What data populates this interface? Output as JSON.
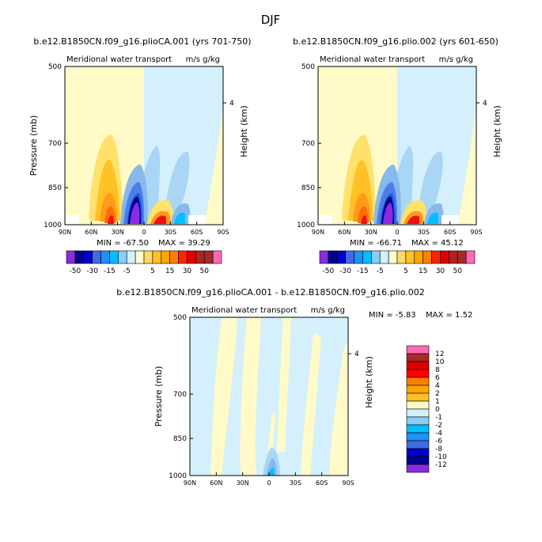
{
  "figure_title": "DJF",
  "chart_data": [
    {
      "type": "heatmap",
      "title": "b.e12.B1850CN.f09_g16.plioCA.001 (yrs 701-750)",
      "subtitle": "Meridional water transport",
      "units": "m/s g/kg",
      "ylabel": "Pressure (mb)",
      "right_label": "Height (km)",
      "xlabel": "",
      "x_ticks": [
        "90N",
        "60N",
        "30N",
        "0",
        "30S",
        "60S",
        "90S"
      ],
      "y_ticks": [
        "500",
        "700",
        "850",
        "1000"
      ],
      "right_ticks": [
        "4"
      ],
      "xlim": [
        90,
        -90
      ],
      "ylim": [
        1000,
        500
      ],
      "min_label": "MIN =  -67.50",
      "max_label": "MAX =  39.29",
      "min": -67.5,
      "max": 39.29,
      "features": [
        {
          "lat": 42,
          "p_top": 640,
          "level": 15
        },
        {
          "lat": 37,
          "p_top": 760,
          "level": 20
        },
        {
          "lat": 33,
          "p_top": 920,
          "level": 30
        },
        {
          "lat": 10,
          "p_top": 820,
          "level": -5
        },
        {
          "lat": 8,
          "p_top": 880,
          "level": -15
        },
        {
          "lat": 6,
          "p_top": 920,
          "level": -30
        },
        {
          "lat": 5,
          "p_top": 950,
          "level": -50
        },
        {
          "lat": -15,
          "p_top": 900,
          "level": 5
        },
        {
          "lat": -22,
          "p_top": 950,
          "level": 30
        },
        {
          "lat": -40,
          "p_top": 890,
          "level": -5
        },
        {
          "lat": -55,
          "p_top": 900,
          "level": -1
        }
      ]
    },
    {
      "type": "heatmap",
      "title": "b.e12.B1850CN.f09_g16.plio.002 (yrs 601-650)",
      "subtitle": "Meridional water transport",
      "units": "m/s g/kg",
      "ylabel": "",
      "right_label": "Height (km)",
      "xlabel": "",
      "x_ticks": [
        "90N",
        "60N",
        "30N",
        "0",
        "30S",
        "60S",
        "90S"
      ],
      "y_ticks": [
        "500",
        "700",
        "850",
        "1000"
      ],
      "right_ticks": [
        "4"
      ],
      "xlim": [
        90,
        -90
      ],
      "ylim": [
        1000,
        500
      ],
      "min_label": "MIN =  -66.71",
      "max_label": "MAX =  45.12",
      "min": -66.71,
      "max": 45.12,
      "features": [
        {
          "lat": 42,
          "p_top": 640,
          "level": 15
        },
        {
          "lat": 37,
          "p_top": 760,
          "level": 20
        },
        {
          "lat": 33,
          "p_top": 920,
          "level": 30
        },
        {
          "lat": 10,
          "p_top": 820,
          "level": -5
        },
        {
          "lat": 8,
          "p_top": 880,
          "level": -15
        },
        {
          "lat": 6,
          "p_top": 920,
          "level": -30
        },
        {
          "lat": 5,
          "p_top": 950,
          "level": -50
        },
        {
          "lat": -15,
          "p_top": 900,
          "level": 5
        },
        {
          "lat": -22,
          "p_top": 950,
          "level": 30
        },
        {
          "lat": -40,
          "p_top": 890,
          "level": -5
        },
        {
          "lat": -55,
          "p_top": 900,
          "level": -1
        }
      ]
    },
    {
      "type": "heatmap",
      "title": "b.e12.B1850CN.f09_g16.plioCA.001 - b.e12.B1850CN.f09_g16.plio.002",
      "subtitle": "Meridional water transport",
      "units": "m/s g/kg",
      "ylabel": "Pressure (mb)",
      "right_label": "Height (km)",
      "xlabel": "",
      "x_ticks": [
        "90N",
        "60N",
        "30N",
        "0",
        "30S",
        "60S",
        "90S"
      ],
      "y_ticks": [
        "500",
        "700",
        "850",
        "1000"
      ],
      "right_ticks": [
        "4"
      ],
      "xlim": [
        90,
        -90
      ],
      "ylim": [
        1000,
        500
      ],
      "min_label": "MIN =  -5.83",
      "max_label": "MAX =   1.52",
      "min": -5.83,
      "max": 1.52,
      "features": [
        {
          "lat": 5,
          "p_top": 920,
          "level": -2
        },
        {
          "lat": 0,
          "p_top": 970,
          "level": -4
        }
      ]
    }
  ],
  "colorbar_top": {
    "colors": [
      "#8a2be2",
      "#00008b",
      "#0000cd",
      "#4169e1",
      "#1e90ff",
      "#00bfff",
      "#87cefa",
      "#d4f0fc",
      "#fffacd",
      "#ffd966",
      "#ffc125",
      "#ffa500",
      "#ff7f00",
      "#ff2400",
      "#dd0000",
      "#b22222",
      "#a52a2a",
      "#ff69b4"
    ],
    "labels": [
      "-50",
      "-30",
      "-15",
      "-5",
      "5",
      "15",
      "30",
      "50"
    ]
  },
  "colorbar_side": {
    "colors": [
      "#ff69b4",
      "#a52a2a",
      "#dd0000",
      "#ff0000",
      "#ff7f00",
      "#ffa500",
      "#ffc125",
      "#fffacd",
      "#d4f0fc",
      "#87cefa",
      "#00bfff",
      "#1e90ff",
      "#4169e1",
      "#0000cd",
      "#00008b",
      "#8a2be2"
    ],
    "labels": [
      "12",
      "10",
      "8",
      "6",
      "4",
      "2",
      "1",
      "0",
      "-1",
      "-2",
      "-4",
      "-6",
      "-8",
      "-10",
      "-12"
    ]
  }
}
